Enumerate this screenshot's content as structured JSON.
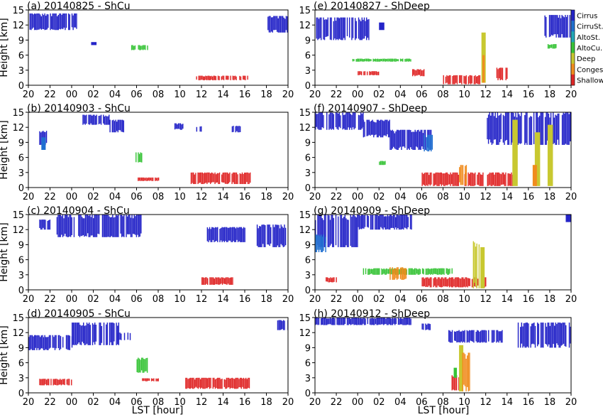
{
  "figure": {
    "xlabel": "LST [hour]",
    "ylabel": "Height [km]"
  },
  "colorbar": {
    "categories": [
      "Cirrus",
      "CirruSt.",
      "AltoSt.",
      "AltoCu.",
      "Deep",
      "Conges.",
      "Shallow"
    ],
    "colors": [
      "#2424c8",
      "#1f6fd0",
      "#22a8b8",
      "#38c438",
      "#c8c830",
      "#f08c1e",
      "#e02828"
    ]
  },
  "chart_data": [
    {
      "type": "heatmap",
      "panel": "(a)",
      "title": "(a) 20140825 - ShCu",
      "x_ticks": [
        "20",
        "22",
        "00",
        "02",
        "04",
        "06",
        "08",
        "10",
        "12",
        "14",
        "16",
        "18",
        "20"
      ],
      "y_ticks": [
        0,
        3,
        6,
        9,
        12,
        15
      ],
      "ylim": [
        0,
        15
      ],
      "xlim_hours": [
        20,
        44
      ],
      "cloud_regions": [
        {
          "class": "Cirrus",
          "start": 20.0,
          "end": 24.5,
          "bottom": 11.0,
          "top": 14.3
        },
        {
          "class": "Cirrus",
          "start": 25.8,
          "end": 26.3,
          "bottom": 8.0,
          "top": 8.6
        },
        {
          "class": "Cirrus",
          "start": 42.0,
          "end": 44.0,
          "bottom": 10.5,
          "top": 13.8
        },
        {
          "class": "AltoCu.",
          "start": 29.5,
          "end": 31.0,
          "bottom": 7.0,
          "top": 8.0
        },
        {
          "class": "Shallow",
          "start": 35.5,
          "end": 40.3,
          "bottom": 1.0,
          "top": 1.9
        }
      ]
    },
    {
      "type": "heatmap",
      "panel": "(e)",
      "title": "(e) 20140827 - ShDeep",
      "x_ticks": [
        "20",
        "22",
        "00",
        "02",
        "04",
        "06",
        "08",
        "10",
        "12",
        "14",
        "16",
        "18",
        "20"
      ],
      "y_ticks": [
        0,
        3,
        6,
        9,
        12,
        15
      ],
      "ylim": [
        0,
        15
      ],
      "xlim_hours": [
        20,
        44
      ],
      "cloud_regions": [
        {
          "class": "Cirrus",
          "start": 20.0,
          "end": 25.0,
          "bottom": 9.0,
          "top": 13.5
        },
        {
          "class": "Cirrus",
          "start": 26.0,
          "end": 26.5,
          "bottom": 11.0,
          "top": 12.5
        },
        {
          "class": "Cirrus",
          "start": 41.5,
          "end": 44.0,
          "bottom": 9.5,
          "top": 14.0
        },
        {
          "class": "AltoCu.",
          "start": 23.5,
          "end": 29.0,
          "bottom": 4.7,
          "top": 5.3
        },
        {
          "class": "AltoCu.",
          "start": 41.8,
          "end": 42.6,
          "bottom": 7.3,
          "top": 8.2
        },
        {
          "class": "Shallow",
          "start": 24.0,
          "end": 26.0,
          "bottom": 2.0,
          "top": 2.8
        },
        {
          "class": "Shallow",
          "start": 29.0,
          "end": 30.2,
          "bottom": 1.8,
          "top": 3.2
        },
        {
          "class": "Shallow",
          "start": 32.0,
          "end": 35.5,
          "bottom": 0.2,
          "top": 2.0
        },
        {
          "class": "Shallow",
          "start": 37.0,
          "end": 38.0,
          "bottom": 1.0,
          "top": 3.5
        },
        {
          "class": "Deep",
          "start": 35.6,
          "end": 36.0,
          "bottom": 0.5,
          "top": 10.5
        },
        {
          "class": "Conges.",
          "start": 35.7,
          "end": 35.9,
          "bottom": 0.5,
          "top": 6.0
        }
      ]
    },
    {
      "type": "heatmap",
      "panel": "(b)",
      "title": "(b) 20140903 - ShCu",
      "x_ticks": [
        "20",
        "22",
        "00",
        "02",
        "04",
        "06",
        "08",
        "10",
        "12",
        "14",
        "16",
        "18",
        "20"
      ],
      "y_ticks": [
        0,
        3,
        6,
        9,
        12,
        15
      ],
      "ylim": [
        0,
        15
      ],
      "xlim_hours": [
        20,
        44
      ],
      "cloud_regions": [
        {
          "class": "Cirrus",
          "start": 21.0,
          "end": 21.7,
          "bottom": 8.5,
          "top": 11.3
        },
        {
          "class": "CirruSt.",
          "start": 21.2,
          "end": 21.6,
          "bottom": 7.5,
          "top": 10.0
        },
        {
          "class": "Cirrus",
          "start": 25.0,
          "end": 27.5,
          "bottom": 12.5,
          "top": 14.5
        },
        {
          "class": "Cirrus",
          "start": 27.5,
          "end": 28.8,
          "bottom": 11.0,
          "top": 13.5
        },
        {
          "class": "Cirrus",
          "start": 33.5,
          "end": 34.3,
          "bottom": 11.5,
          "top": 12.8
        },
        {
          "class": "Cirrus",
          "start": 35.2,
          "end": 36.0,
          "bottom": 11.0,
          "top": 12.2
        },
        {
          "class": "Cirrus",
          "start": 38.8,
          "end": 39.6,
          "bottom": 11.0,
          "top": 12.3
        },
        {
          "class": "AltoCu.",
          "start": 29.8,
          "end": 30.5,
          "bottom": 5.0,
          "top": 7.0
        },
        {
          "class": "Shallow",
          "start": 30.0,
          "end": 32.0,
          "bottom": 1.3,
          "top": 2.0
        },
        {
          "class": "Shallow",
          "start": 35.0,
          "end": 40.5,
          "bottom": 0.7,
          "top": 3.0
        }
      ]
    },
    {
      "type": "heatmap",
      "panel": "(f)",
      "title": "(f) 20140907 - ShDeep",
      "x_ticks": [
        "20",
        "22",
        "00",
        "02",
        "04",
        "06",
        "08",
        "10",
        "12",
        "14",
        "16",
        "18",
        "20"
      ],
      "y_ticks": [
        0,
        3,
        6,
        9,
        12,
        15
      ],
      "ylim": [
        0,
        15
      ],
      "xlim_hours": [
        20,
        44
      ],
      "cloud_regions": [
        {
          "class": "Cirrus",
          "start": 20.0,
          "end": 24.5,
          "bottom": 11.5,
          "top": 15.0
        },
        {
          "class": "Cirrus",
          "start": 24.5,
          "end": 27.0,
          "bottom": 10.0,
          "top": 13.5
        },
        {
          "class": "Cirrus",
          "start": 27.0,
          "end": 31.0,
          "bottom": 7.5,
          "top": 11.5
        },
        {
          "class": "CirruSt.",
          "start": 30.2,
          "end": 31.0,
          "bottom": 7.2,
          "top": 10.5
        },
        {
          "class": "Cirrus",
          "start": 36.0,
          "end": 44.0,
          "bottom": 8.5,
          "top": 15.0
        },
        {
          "class": "AltoCu.",
          "start": 26.0,
          "end": 26.6,
          "bottom": 4.5,
          "top": 5.3
        },
        {
          "class": "Shallow",
          "start": 30.0,
          "end": 33.5,
          "bottom": 0.3,
          "top": 3.0
        },
        {
          "class": "Shallow",
          "start": 34.0,
          "end": 38.5,
          "bottom": 0.3,
          "top": 3.0
        },
        {
          "class": "Conges.",
          "start": 33.5,
          "end": 34.2,
          "bottom": 0.5,
          "top": 4.5
        },
        {
          "class": "Deep",
          "start": 38.5,
          "end": 39.0,
          "bottom": 0.3,
          "top": 13.5
        },
        {
          "class": "Deep",
          "start": 40.6,
          "end": 41.1,
          "bottom": 0.3,
          "top": 11.0
        },
        {
          "class": "Deep",
          "start": 41.8,
          "end": 42.3,
          "bottom": 0.3,
          "top": 12.5
        },
        {
          "class": "Conges.",
          "start": 40.4,
          "end": 40.8,
          "bottom": 0.3,
          "top": 4.5
        }
      ]
    },
    {
      "type": "heatmap",
      "panel": "(c)",
      "title": "(c) 20140904 - ShCu",
      "x_ticks": [
        "20",
        "22",
        "00",
        "02",
        "04",
        "06",
        "08",
        "10",
        "12",
        "14",
        "16",
        "18",
        "20"
      ],
      "y_ticks": [
        0,
        3,
        6,
        9,
        12,
        15
      ],
      "ylim": [
        0,
        15
      ],
      "xlim_hours": [
        20,
        44
      ],
      "cloud_regions": [
        {
          "class": "Cirrus",
          "start": 21.0,
          "end": 22.0,
          "bottom": 12.0,
          "top": 14.0
        },
        {
          "class": "Cirrus",
          "start": 22.5,
          "end": 30.5,
          "bottom": 10.5,
          "top": 15.0
        },
        {
          "class": "Cirrus",
          "start": 36.5,
          "end": 40.0,
          "bottom": 9.5,
          "top": 12.5
        },
        {
          "class": "Cirrus",
          "start": 41.0,
          "end": 44.0,
          "bottom": 8.5,
          "top": 13.0
        },
        {
          "class": "Shallow",
          "start": 36.0,
          "end": 39.0,
          "bottom": 1.0,
          "top": 2.5
        }
      ]
    },
    {
      "type": "heatmap",
      "panel": "(g)",
      "title": "(g) 20140909 - ShDeep",
      "x_ticks": [
        "20",
        "22",
        "00",
        "02",
        "04",
        "06",
        "08",
        "10",
        "12",
        "14",
        "16",
        "18",
        "20"
      ],
      "y_ticks": [
        0,
        3,
        6,
        9,
        12,
        15
      ],
      "ylim": [
        0,
        15
      ],
      "xlim_hours": [
        20,
        44
      ],
      "cloud_regions": [
        {
          "class": "Cirrus",
          "start": 20.0,
          "end": 24.0,
          "bottom": 8.5,
          "top": 15.0
        },
        {
          "class": "Cirrus",
          "start": 24.0,
          "end": 29.0,
          "bottom": 12.0,
          "top": 15.0
        },
        {
          "class": "CirruSt.",
          "start": 20.0,
          "end": 21.0,
          "bottom": 7.5,
          "top": 11.0
        },
        {
          "class": "AltoCu.",
          "start": 24.5,
          "end": 33.0,
          "bottom": 3.0,
          "top": 4.3
        },
        {
          "class": "Conges.",
          "start": 27.0,
          "end": 28.5,
          "bottom": 2.0,
          "top": 4.5
        },
        {
          "class": "Shallow",
          "start": 21.0,
          "end": 22.0,
          "bottom": 1.5,
          "top": 2.5
        },
        {
          "class": "Shallow",
          "start": 30.0,
          "end": 36.0,
          "bottom": 0.5,
          "top": 2.5
        },
        {
          "class": "Deep",
          "start": 34.8,
          "end": 35.4,
          "bottom": 0.3,
          "top": 10.0
        },
        {
          "class": "Deep",
          "start": 35.5,
          "end": 35.9,
          "bottom": 0.3,
          "top": 8.5
        },
        {
          "class": "Cirrus",
          "start": 43.5,
          "end": 44.0,
          "bottom": 13.5,
          "top": 15.0
        }
      ]
    },
    {
      "type": "heatmap",
      "panel": "(d)",
      "title": "(d) 20140905 - ShCu",
      "x_ticks": [
        "20",
        "22",
        "00",
        "02",
        "04",
        "06",
        "08",
        "10",
        "12",
        "14",
        "16",
        "18",
        "20"
      ],
      "y_ticks": [
        0,
        3,
        6,
        9,
        12,
        15
      ],
      "ylim": [
        0,
        15
      ],
      "xlim_hours": [
        20,
        44
      ],
      "cloud_regions": [
        {
          "class": "Cirrus",
          "start": 20.0,
          "end": 24.0,
          "bottom": 8.5,
          "top": 11.5
        },
        {
          "class": "Cirrus",
          "start": 24.0,
          "end": 28.5,
          "bottom": 9.5,
          "top": 14.0
        },
        {
          "class": "Cirrus",
          "start": 28.0,
          "end": 29.5,
          "bottom": 10.5,
          "top": 12.0
        },
        {
          "class": "Cirrus",
          "start": 43.0,
          "end": 44.0,
          "bottom": 12.5,
          "top": 14.5
        },
        {
          "class": "AltoCu.",
          "start": 30.0,
          "end": 31.0,
          "bottom": 4.0,
          "top": 7.0
        },
        {
          "class": "Shallow",
          "start": 21.0,
          "end": 24.0,
          "bottom": 1.5,
          "top": 2.8
        },
        {
          "class": "Shallow",
          "start": 30.5,
          "end": 32.0,
          "bottom": 2.3,
          "top": 2.9
        },
        {
          "class": "Shallow",
          "start": 34.5,
          "end": 40.5,
          "bottom": 0.8,
          "top": 3.0
        }
      ]
    },
    {
      "type": "heatmap",
      "panel": "(h)",
      "title": "(h) 20140912 - ShDeep",
      "x_ticks": [
        "20",
        "22",
        "00",
        "02",
        "04",
        "06",
        "08",
        "10",
        "12",
        "14",
        "16",
        "18",
        "20"
      ],
      "y_ticks": [
        0,
        3,
        6,
        9,
        12,
        15
      ],
      "ylim": [
        0,
        15
      ],
      "xlim_hours": [
        20,
        44
      ],
      "cloud_regions": [
        {
          "class": "Cirrus",
          "start": 20.0,
          "end": 29.0,
          "bottom": 13.5,
          "top": 15.0
        },
        {
          "class": "Cirrus",
          "start": 30.0,
          "end": 30.8,
          "bottom": 12.5,
          "top": 13.8
        },
        {
          "class": "Cirrus",
          "start": 32.5,
          "end": 37.5,
          "bottom": 10.0,
          "top": 12.5
        },
        {
          "class": "Cirrus",
          "start": 39.0,
          "end": 44.0,
          "bottom": 9.0,
          "top": 14.0
        },
        {
          "class": "Shallow",
          "start": 32.8,
          "end": 33.5,
          "bottom": 0.5,
          "top": 3.5
        },
        {
          "class": "AltoCu.",
          "start": 33.0,
          "end": 33.3,
          "bottom": 3.0,
          "top": 5.0
        },
        {
          "class": "Deep",
          "start": 33.5,
          "end": 33.9,
          "bottom": 0.3,
          "top": 9.5
        },
        {
          "class": "Conges.",
          "start": 33.8,
          "end": 34.5,
          "bottom": 0.3,
          "top": 8.0
        }
      ]
    }
  ]
}
